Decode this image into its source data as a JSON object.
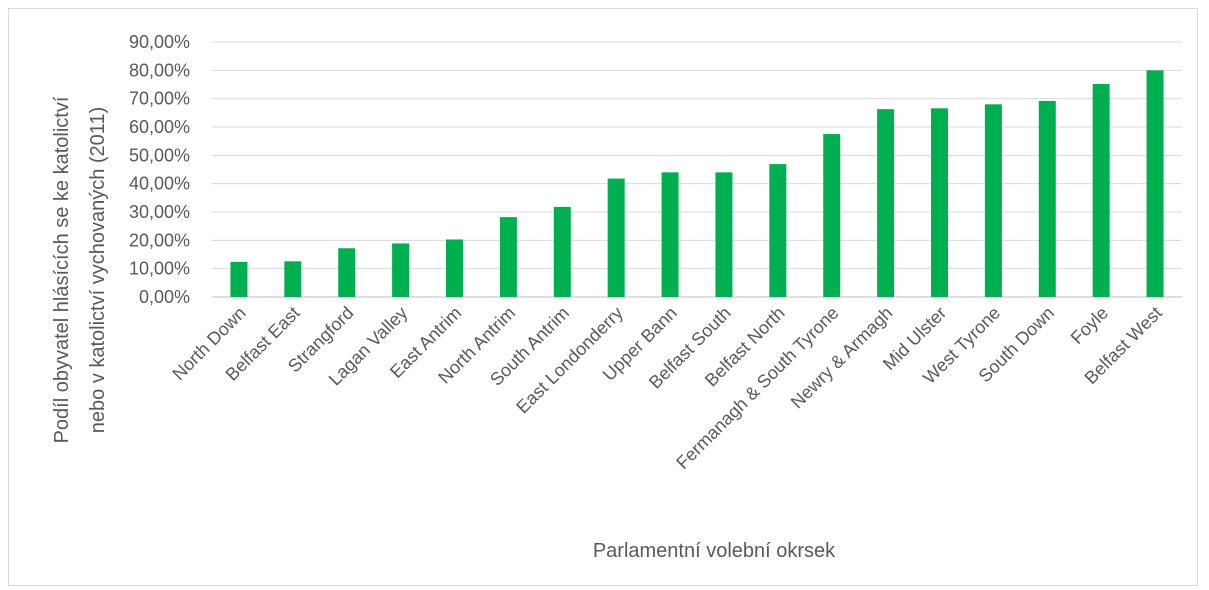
{
  "chart_data": {
    "type": "bar",
    "title": "",
    "xlabel": "Parlamentní volební okrsek",
    "ylabel_lines": [
      "Podíl obyvatel hlásících se ke katolictví",
      "nebo v katolictví vychovaných (2011)"
    ],
    "ylim": [
      0,
      90
    ],
    "y_ticks": [
      0,
      10,
      20,
      30,
      40,
      50,
      60,
      70,
      80,
      90
    ],
    "y_tick_labels": [
      "0,00%",
      "10,00%",
      "20,00%",
      "30,00%",
      "40,00%",
      "50,00%",
      "60,00%",
      "70,00%",
      "80,00%",
      "90,00%"
    ],
    "grid": true,
    "legend": "none",
    "bar_color": "#00b050",
    "categories": [
      "North Down",
      "Belfast East",
      "Strangford",
      "Lagan Valley",
      "East Antrim",
      "North Antrim",
      "South Antrim",
      "East Londonderry",
      "Upper Bann",
      "Belfast South",
      "Belfast North",
      "Fermanagh & South Tyrone",
      "Newry & Armagh",
      "Mid Ulster",
      "West Tyrone",
      "South Down",
      "Foyle",
      "Belfast West"
    ],
    "values": [
      12.4,
      12.6,
      17.2,
      18.9,
      20.3,
      28.2,
      31.8,
      41.8,
      44.0,
      44.0,
      46.9,
      57.5,
      66.3,
      66.6,
      68.0,
      69.2,
      75.2,
      80.0
    ]
  }
}
